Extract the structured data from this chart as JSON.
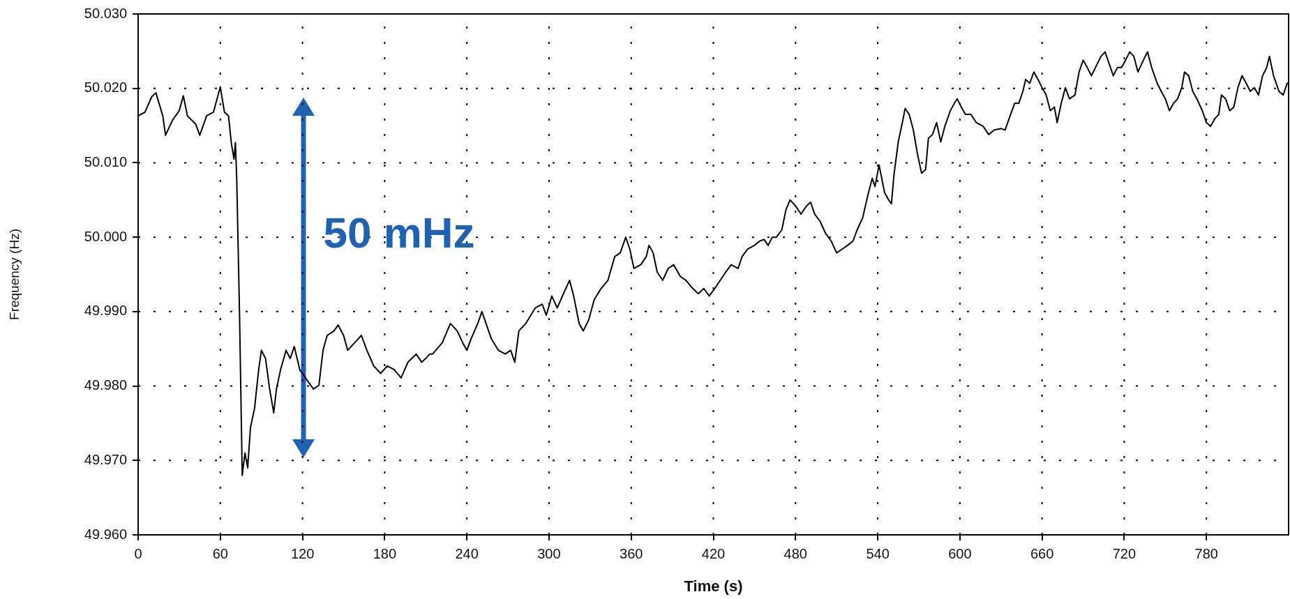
{
  "chart_data": {
    "type": "line",
    "xlabel": "Time (s)",
    "ylabel": "Frequency (Hz)",
    "xlim": [
      0,
      840
    ],
    "xticks": [
      0,
      60,
      120,
      180,
      240,
      300,
      360,
      420,
      480,
      540,
      600,
      660,
      720,
      780
    ],
    "ylim": [
      49.96,
      50.03
    ],
    "yticks": [
      {
        "value": 49.96,
        "label": "49.960"
      },
      {
        "value": 49.97,
        "label": "49.970"
      },
      {
        "value": 49.98,
        "label": "49.980"
      },
      {
        "value": 49.99,
        "label": "49.990"
      },
      {
        "value": 50.0,
        "label": "50.000"
      },
      {
        "value": 50.01,
        "label": "50.010"
      },
      {
        "value": 50.02,
        "label": "50.020"
      },
      {
        "value": 50.03,
        "label": "50.030"
      }
    ],
    "grid": true,
    "legend": false,
    "marker": "none",
    "line_style": "solid",
    "annotations": [
      "50 mHz"
    ],
    "series": [
      {
        "color": "#000000",
        "x": [
          0,
          5,
          10,
          13,
          18,
          20,
          25,
          30,
          33,
          36,
          42,
          45,
          50,
          55,
          60,
          63,
          66,
          68,
          70,
          71,
          72,
          74,
          76,
          78,
          80,
          82,
          85,
          88,
          90,
          93,
          96,
          99,
          101,
          104,
          108,
          111,
          114,
          118,
          124,
          128,
          132,
          135,
          138,
          143,
          146,
          150,
          153,
          158,
          163,
          167,
          172,
          177,
          182,
          187,
          192,
          197,
          203,
          207,
          210,
          213,
          215,
          222,
          228,
          233,
          237,
          240,
          243,
          248,
          251,
          254,
          258,
          263,
          268,
          272,
          275,
          278,
          283,
          290,
          295,
          298,
          302,
          306,
          311,
          315,
          318,
          322,
          325,
          329,
          333,
          338,
          343,
          348,
          352,
          356,
          359,
          362,
          367,
          371,
          373,
          376,
          379,
          383,
          387,
          391,
          396,
          400,
          405,
          409,
          413,
          417,
          421,
          425,
          429,
          433,
          438,
          441,
          445,
          450,
          454,
          457,
          460,
          463,
          466,
          470,
          473,
          476,
          480,
          484,
          488,
          491,
          494,
          498,
          502,
          506,
          510,
          514,
          518,
          522,
          525,
          529,
          533,
          536,
          538,
          541,
          545,
          548,
          550,
          552,
          555,
          558,
          560,
          563,
          566,
          569,
          572,
          575,
          577,
          580,
          583,
          586,
          589,
          593,
          596,
          598,
          601,
          604,
          608,
          612,
          617,
          621,
          625,
          630,
          633,
          637,
          640,
          643,
          646,
          648,
          651,
          654,
          657,
          660,
          663,
          666,
          669,
          671,
          674,
          677,
          680,
          684,
          687,
          690,
          693,
          696,
          699,
          703,
          706,
          709,
          712,
          715,
          718,
          721,
          724,
          727,
          730,
          734,
          737,
          740,
          744,
          747,
          750,
          753,
          756,
          759,
          762,
          764,
          767,
          770,
          773,
          777,
          780,
          783,
          786,
          789,
          791,
          794,
          797,
          800,
          803,
          806,
          809,
          812,
          815,
          818,
          821,
          824,
          826,
          829,
          833,
          836,
          839
        ],
        "values": [
          50.0163,
          50.0168,
          50.0189,
          50.0194,
          50.0163,
          50.0137,
          50.0157,
          50.017,
          50.019,
          50.0163,
          50.0152,
          50.0137,
          50.0163,
          50.0168,
          50.0202,
          50.0168,
          50.0163,
          50.0127,
          50.0105,
          50.0127,
          50.0077,
          49.99,
          49.968,
          49.971,
          49.969,
          49.9744,
          49.977,
          49.9822,
          49.9848,
          49.9837,
          49.9796,
          49.9764,
          49.9796,
          49.9822,
          49.9848,
          49.9837,
          49.9853,
          49.9822,
          49.9806,
          49.9796,
          49.9801,
          49.9848,
          49.9868,
          49.9874,
          49.9882,
          49.9868,
          49.9848,
          49.9858,
          49.9868,
          49.9848,
          49.9827,
          49.9817,
          49.9827,
          49.9822,
          49.9811,
          49.9832,
          49.9843,
          49.9832,
          49.9837,
          49.9843,
          49.9843,
          49.9858,
          49.9884,
          49.9874,
          49.9858,
          49.9848,
          49.9863,
          49.9884,
          49.99,
          49.9884,
          49.9863,
          49.9848,
          49.9843,
          49.9848,
          49.9832,
          49.9874,
          49.9884,
          49.9905,
          49.991,
          49.9895,
          49.9921,
          49.9905,
          49.9926,
          49.9942,
          49.9921,
          49.9884,
          49.9874,
          49.9889,
          49.9916,
          49.9931,
          49.9942,
          49.9974,
          49.9979,
          50.0,
          49.9984,
          49.9958,
          49.9963,
          49.9974,
          49.9989,
          49.9979,
          49.9953,
          49.9942,
          49.9958,
          49.9963,
          49.9947,
          49.9942,
          49.9931,
          49.9924,
          49.9931,
          49.9921,
          49.9931,
          49.9942,
          49.9953,
          49.9963,
          49.9958,
          49.9974,
          49.9984,
          49.9989,
          49.9995,
          49.9997,
          49.9989,
          50.0,
          50.0,
          50.001,
          50.0037,
          50.005,
          50.0042,
          50.0031,
          50.0042,
          50.0047,
          50.0031,
          50.0021,
          50.0005,
          49.9995,
          49.9979,
          49.9984,
          49.9989,
          49.9995,
          50.001,
          50.0026,
          50.0058,
          50.0079,
          50.0068,
          50.0097,
          50.006,
          50.005,
          50.0045,
          50.0086,
          50.0128,
          50.0154,
          50.0173,
          50.0165,
          50.0144,
          50.0112,
          50.0086,
          50.0091,
          50.0133,
          50.0138,
          50.0154,
          50.0128,
          50.0149,
          50.017,
          50.018,
          50.0186,
          50.0175,
          50.0165,
          50.0165,
          50.0154,
          50.0149,
          50.0138,
          50.0144,
          50.0146,
          50.0144,
          50.0165,
          50.018,
          50.018,
          50.0196,
          50.0212,
          50.0207,
          50.0222,
          50.0212,
          50.0201,
          50.0191,
          50.017,
          50.0175,
          50.0154,
          50.018,
          50.0201,
          50.0186,
          50.0191,
          50.0222,
          50.0238,
          50.0228,
          50.0217,
          50.0228,
          50.0243,
          50.0249,
          50.0233,
          50.0217,
          50.0228,
          50.0228,
          50.0238,
          50.0249,
          50.0243,
          50.0222,
          50.0238,
          50.0249,
          50.0228,
          50.0207,
          50.0196,
          50.0186,
          50.017,
          50.018,
          50.0186,
          50.0201,
          50.0222,
          50.0217,
          50.0196,
          50.0186,
          50.017,
          50.0154,
          50.0149,
          50.0159,
          50.0165,
          50.0191,
          50.0186,
          50.017,
          50.0175,
          50.0201,
          50.0217,
          50.0207,
          50.0196,
          50.0201,
          50.0191,
          50.0217,
          50.0228,
          50.0243,
          50.0217,
          50.0196,
          50.0191,
          50.0207
        ]
      }
    ]
  }
}
